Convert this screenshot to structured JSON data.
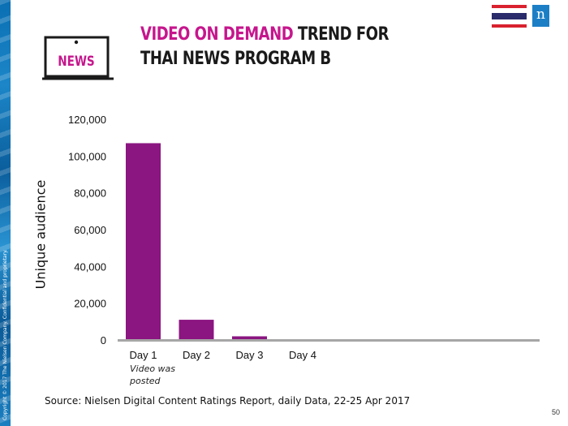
{
  "header": {
    "title_highlight": "VIDEO ON DEMAND",
    "title_rest_line1": " TREND FOR",
    "title_line2": "THAI NEWS PROGRAM B",
    "news_icon_text": "NEWS",
    "highlight_color": "#c6168d",
    "logo_text": "n",
    "logo_color": "#1c7fc6",
    "flag_icon": "thailand-flag-icon"
  },
  "chart_data": {
    "type": "bar",
    "categories": [
      "Day 1",
      "Day 2",
      "Day 3",
      "Day 4"
    ],
    "values": [
      107000,
      11000,
      2000,
      0
    ],
    "ylabel": "Unique audience",
    "ylim": [
      0,
      120000
    ],
    "yticks": [
      0,
      20000,
      40000,
      60000,
      80000,
      100000,
      120000
    ],
    "ytick_labels": [
      "0",
      "20,000",
      "40,000",
      "60,000",
      "80,000",
      "100,000",
      "120,000"
    ],
    "bar_color": "#8b1581",
    "grid": false,
    "annotations": [
      {
        "category": "Day 1",
        "text": "Video was posted"
      }
    ]
  },
  "footer": {
    "source": "Source: Nielsen Digital Content Ratings Report, daily Data, 22-25 Apr 2017",
    "page_number": "50",
    "copyright": "Copyright © 2017 The Nielsen Company. Confidential and proprietary."
  }
}
